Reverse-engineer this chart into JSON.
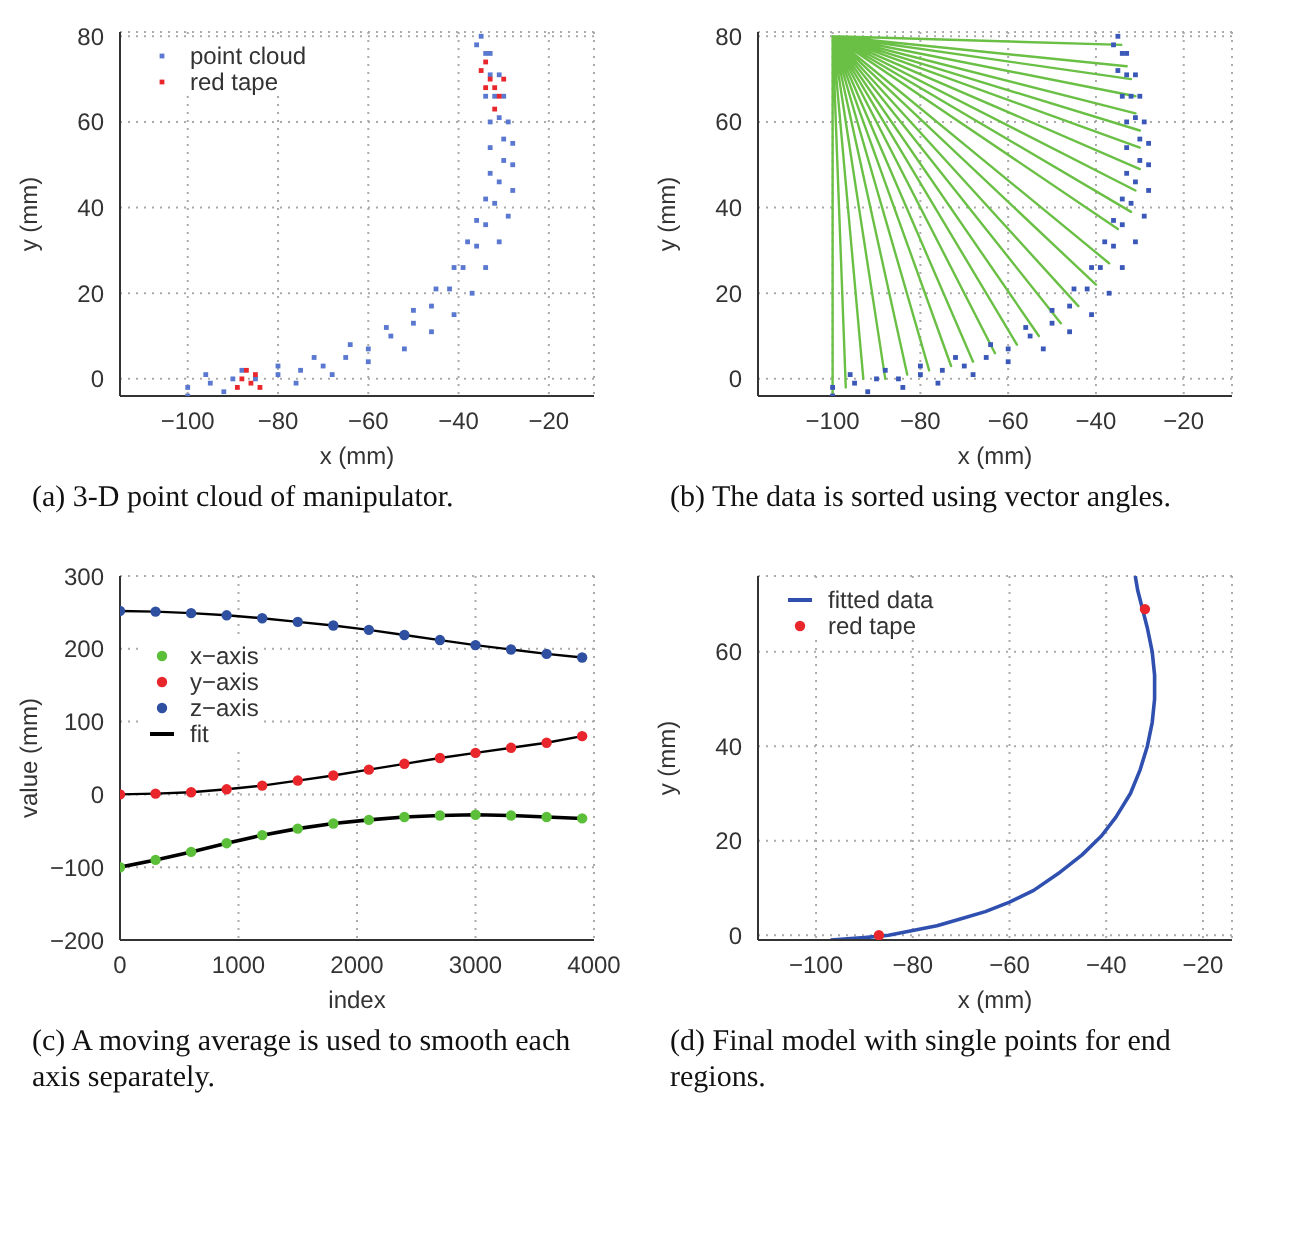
{
  "chart_data": [
    {
      "type": "scatter",
      "xlabel": "x (mm)",
      "ylabel": "y (mm)",
      "xlim": [
        -115,
        -10
      ],
      "ylim": [
        -4,
        81
      ],
      "xticks": [
        -100,
        -80,
        -60,
        -40,
        -20
      ],
      "yticks": [
        0,
        20,
        40,
        60,
        80
      ],
      "grid": true,
      "legend": "top left",
      "annotations": [
        "(a) 3-D point cloud of manipulator."
      ],
      "series": [
        {
          "name": "point cloud",
          "color": "#5a78d0",
          "marker": "square",
          "x": [
            -100,
            -95,
            -90,
            -85,
            -80,
            -75,
            -70,
            -65,
            -60,
            -55,
            -50,
            -46,
            -42,
            -39,
            -36,
            -34,
            -32,
            -31,
            -30,
            -30,
            -31,
            -32,
            -33,
            -34,
            -35,
            -100,
            -92,
            -84,
            -76,
            -68,
            -60,
            -52,
            -46,
            -41,
            -37,
            -34,
            -31,
            -29,
            -28,
            -28,
            -28,
            -29,
            -30,
            -31,
            -33,
            -96,
            -88,
            -80,
            -72,
            -64,
            -56,
            -50,
            -45,
            -41,
            -38,
            -36,
            -34,
            -33,
            -33,
            -33,
            -34,
            -35,
            -36
          ],
          "values": [
            -2,
            -1,
            0,
            0,
            1,
            2,
            3,
            5,
            7,
            10,
            13,
            17,
            21,
            26,
            31,
            36,
            41,
            46,
            51,
            56,
            61,
            66,
            71,
            76,
            80,
            -4,
            -3,
            null,
            -1,
            1,
            4,
            7,
            11,
            15,
            20,
            26,
            32,
            38,
            44,
            50,
            55,
            60,
            66,
            71,
            76,
            1,
            2,
            3,
            5,
            8,
            12,
            16,
            21,
            26,
            32,
            37,
            42,
            48,
            54,
            60,
            66,
            null,
            78
          ]
        },
        {
          "name": "red tape",
          "color": "#e8262c",
          "marker": "square",
          "x": [
            -89,
            -88,
            -87,
            -86,
            -85,
            -84,
            -35,
            -34,
            -33,
            -32,
            -31,
            -32,
            -30,
            -34
          ],
          "values": [
            -2,
            0,
            2,
            -1,
            1,
            -2,
            72,
            74,
            70,
            68,
            66,
            63,
            70,
            68
          ]
        }
      ]
    },
    {
      "type": "scatter",
      "xlabel": "x (mm)",
      "ylabel": "y (mm)",
      "xlim": [
        -117,
        -9
      ],
      "ylim": [
        -4,
        81
      ],
      "xticks": [
        -100,
        -80,
        -60,
        -40,
        -20
      ],
      "yticks": [
        0,
        20,
        40,
        60,
        80
      ],
      "grid": true,
      "annotations": [
        "(b) The data is sorted using vector angles."
      ],
      "series": [
        {
          "color": "#3a58b8",
          "marker": "square",
          "x": [
            -100,
            -95,
            -90,
            -85,
            -80,
            -75,
            -70,
            -65,
            -60,
            -55,
            -50,
            -46,
            -42,
            -39,
            -36,
            -34,
            -32,
            -31,
            -30,
            -30,
            -31,
            -32,
            -33,
            -34,
            -35,
            -100,
            -92,
            -84,
            -76,
            -68,
            -60,
            -52,
            -46,
            -41,
            -37,
            -34,
            -31,
            -29,
            -28,
            -28,
            -28,
            -29,
            -30,
            -31,
            -33,
            -96,
            -88,
            -80,
            -72,
            -64,
            -56,
            -50,
            -45,
            -41,
            -38,
            -36,
            -34,
            -33,
            -33,
            -33,
            -34,
            -35,
            -36
          ],
          "values": [
            -2,
            -1,
            0,
            0,
            1,
            2,
            3,
            5,
            7,
            10,
            13,
            17,
            21,
            26,
            31,
            36,
            41,
            46,
            51,
            56,
            61,
            66,
            71,
            76,
            80,
            -4,
            -3,
            -2,
            -1,
            1,
            4,
            7,
            11,
            15,
            20,
            26,
            32,
            38,
            44,
            50,
            55,
            60,
            66,
            71,
            76,
            1,
            2,
            3,
            5,
            8,
            12,
            16,
            21,
            26,
            32,
            37,
            42,
            48,
            54,
            60,
            66,
            72,
            78
          ]
        },
        {
          "type": "line",
          "color": "#6abf45",
          "x": [
            -100,
            -100,
            -100,
            -97,
            -100,
            -93,
            -100,
            -88,
            -100,
            -83,
            -100,
            -78,
            -100,
            -73,
            -100,
            -68,
            -100,
            -63,
            -100,
            -58,
            -100,
            -53,
            -100,
            -48,
            -100,
            -44,
            -100,
            -40,
            -100,
            -37,
            -100,
            -35,
            -100,
            -32,
            -100,
            -31,
            -100,
            -30,
            -100,
            -30,
            -100,
            -30,
            -100,
            -31,
            -100,
            -31,
            -100,
            -32,
            -100,
            -33,
            -100,
            -34
          ],
          "values": [
            80,
            -4,
            80,
            -2,
            80,
            0,
            80,
            0,
            80,
            1,
            80,
            2,
            80,
            3,
            80,
            4,
            80,
            6,
            80,
            8,
            80,
            10,
            80,
            13,
            80,
            17,
            80,
            22,
            80,
            27,
            80,
            35,
            80,
            39,
            80,
            44,
            80,
            49,
            80,
            54,
            80,
            58,
            80,
            62,
            80,
            66,
            80,
            70,
            80,
            73,
            80,
            78
          ]
        }
      ]
    },
    {
      "type": "scatter",
      "xlabel": "index",
      "ylabel": "value (mm)",
      "xlim": [
        0,
        4000
      ],
      "ylim": [
        -200,
        300
      ],
      "xticks": [
        0,
        1000,
        2000,
        3000,
        4000
      ],
      "yticks": [
        -200,
        -100,
        0,
        100,
        200,
        300
      ],
      "grid": true,
      "legend": "left",
      "annotations": [
        "(c) A moving average is used to smooth each axis separately."
      ],
      "series": [
        {
          "name": "x−axis",
          "color": "#5cbf3a",
          "marker": "circle",
          "x": [
            0,
            300,
            600,
            900,
            1200,
            1500,
            1800,
            2100,
            2400,
            2700,
            3000,
            3300,
            3600,
            3900
          ],
          "values": [
            -100,
            -90,
            -79,
            -67,
            -56,
            -47,
            -40,
            -35,
            -31,
            -29,
            -28,
            -29,
            -31,
            -33
          ]
        },
        {
          "name": "y−axis",
          "color": "#e8262c",
          "marker": "circle",
          "x": [
            0,
            300,
            600,
            900,
            1200,
            1500,
            1800,
            2100,
            2400,
            2700,
            3000,
            3300,
            3600,
            3900
          ],
          "values": [
            0,
            1,
            3,
            7,
            12,
            19,
            26,
            34,
            42,
            50,
            57,
            64,
            71,
            80
          ]
        },
        {
          "name": "z−axis",
          "color": "#2f4fa0",
          "marker": "circle",
          "x": [
            0,
            300,
            600,
            900,
            1200,
            1500,
            1800,
            2100,
            2400,
            2700,
            3000,
            3300,
            3600,
            3900
          ],
          "values": [
            252,
            251,
            249,
            246,
            242,
            237,
            232,
            226,
            219,
            212,
            205,
            199,
            193,
            188
          ]
        },
        {
          "name": "fit",
          "type": "line",
          "color": "#000000",
          "x": [
            0,
            300,
            600,
            900,
            1200,
            1500,
            1800,
            2100,
            2400,
            2700,
            3000,
            3300,
            3600,
            3900
          ],
          "values": [
            -100,
            -90,
            -79,
            -67,
            -56,
            -47,
            -40,
            -35,
            -31,
            -29,
            -28,
            -29,
            -31,
            -33
          ]
        },
        {
          "type": "line",
          "color": "#000000",
          "x": [
            0,
            300,
            600,
            900,
            1200,
            1500,
            1800,
            2100,
            2400,
            2700,
            3000,
            3300,
            3600,
            3900
          ],
          "values": [
            0,
            1,
            3,
            7,
            12,
            19,
            26,
            34,
            42,
            50,
            57,
            64,
            71,
            80
          ]
        },
        {
          "type": "line",
          "color": "#000000",
          "x": [
            0,
            300,
            600,
            900,
            1200,
            1500,
            1800,
            2100,
            2400,
            2700,
            3000,
            3300,
            3600,
            3900
          ],
          "values": [
            252,
            251,
            249,
            246,
            242,
            237,
            232,
            226,
            219,
            212,
            205,
            199,
            193,
            188
          ]
        }
      ]
    },
    {
      "type": "line",
      "xlabel": "x (mm)",
      "ylabel": "y (mm)",
      "xlim": [
        -112,
        -14
      ],
      "ylim": [
        -1,
        76
      ],
      "xticks": [
        -100,
        -80,
        -60,
        -40,
        -20
      ],
      "yticks": [
        0,
        20,
        40,
        60
      ],
      "grid": true,
      "legend": "top left",
      "annotations": [
        "(d) Final model with single points for end regions."
      ],
      "series": [
        {
          "name": "fitted data",
          "color": "#3050b0",
          "x": [
            -97,
            -90,
            -85,
            -80,
            -75,
            -70,
            -65,
            -60,
            -55,
            -50,
            -45,
            -41,
            -38,
            -35,
            -33,
            -31.5,
            -30.5,
            -30,
            -30,
            -30.5,
            -31.5,
            -32.5,
            -33.5,
            -34
          ],
          "values": [
            -1,
            -0.5,
            0,
            1,
            2,
            3.5,
            5,
            7,
            9.5,
            13,
            17,
            21,
            25,
            30,
            35,
            40,
            45,
            50,
            55,
            60,
            65,
            69,
            73,
            76
          ]
        },
        {
          "name": "red tape",
          "type": "scatter",
          "color": "#e8262c",
          "marker": "circle",
          "x": [
            -87,
            -32
          ],
          "values": [
            0,
            69
          ]
        }
      ]
    }
  ]
}
